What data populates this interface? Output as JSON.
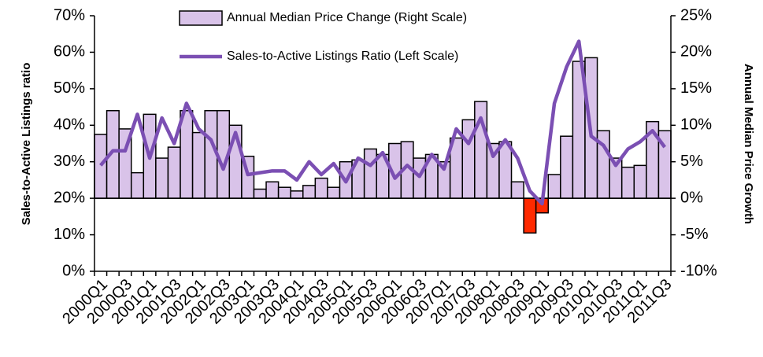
{
  "chart_data": {
    "type": "bar_line",
    "y_label": "Sales-to-Active Listings ratio",
    "y2_label": "Annual Median Price Growth",
    "categories": [
      "2000Q1",
      null,
      "2000Q3",
      null,
      "2001Q1",
      null,
      "2001Q3",
      null,
      "2002Q1",
      null,
      "2002Q3",
      null,
      "2003Q1",
      null,
      "2003Q3",
      null,
      "2004Q1",
      null,
      "2004Q3",
      null,
      "2005Q1",
      null,
      "2005Q3",
      null,
      "2006Q1",
      null,
      "2006Q3",
      null,
      "2007Q1",
      null,
      "2007Q3",
      null,
      "2008Q1",
      null,
      "2008Q3",
      null,
      "2009Q1",
      null,
      "2009Q3",
      null,
      "2010Q1",
      null,
      "2010Q3",
      null,
      "2011Q1",
      null,
      "2011Q3"
    ],
    "series": [
      {
        "name": "Annual Median Price Change (Right Scale)",
        "kind": "bar",
        "axis": "y2",
        "color": "#d9c3e9",
        "negative_color": "#ff2a00",
        "values": [
          8.75,
          12,
          9.5,
          3.5,
          11.5,
          5.5,
          7,
          12,
          9,
          12,
          12,
          10,
          5.75,
          1.25,
          2.25,
          1.5,
          1,
          1.75,
          2.75,
          1.5,
          5,
          5.25,
          6.75,
          6,
          7.5,
          7.75,
          5.5,
          6,
          5,
          8.25,
          10.75,
          13.25,
          7.5,
          7.75,
          2.25,
          -4.75,
          -2,
          3.25,
          8.5,
          18.75,
          19.25,
          9.25,
          5.5,
          4.25,
          4.5,
          10.5,
          9.25
        ]
      },
      {
        "name": "Sales-to-Active Listings Ratio (Left Scale)",
        "kind": "line",
        "axis": "y",
        "color": "#7b4fb3",
        "values": [
          29,
          33,
          33,
          43,
          31,
          42,
          35,
          46,
          39,
          36,
          28,
          38,
          26.5,
          27,
          27.5,
          27.5,
          25,
          30,
          26.5,
          29.5,
          24.5,
          31,
          29,
          32.5,
          25.5,
          29,
          26,
          32,
          28,
          39,
          35,
          42,
          31.5,
          36,
          31,
          22,
          18.5,
          46,
          56,
          63,
          37,
          34.5,
          29,
          33.5,
          35.5,
          38.5,
          34
        ]
      }
    ],
    "ylim": [
      0,
      70
    ],
    "yticks": [
      {
        "value": 0,
        "label": "0%"
      },
      {
        "value": 10,
        "label": "10%"
      },
      {
        "value": 20,
        "label": "20%"
      },
      {
        "value": 30,
        "label": "30%"
      },
      {
        "value": 40,
        "label": "40%"
      },
      {
        "value": 50,
        "label": "50%"
      },
      {
        "value": 60,
        "label": "60%"
      },
      {
        "value": 70,
        "label": "70%"
      }
    ],
    "y2lim": [
      -10,
      25
    ],
    "y2ticks": [
      {
        "value": -10,
        "label": "-10%"
      },
      {
        "value": -5,
        "label": "-5%"
      },
      {
        "value": 0,
        "label": "0%"
      },
      {
        "value": 5,
        "label": "5%"
      },
      {
        "value": 10,
        "label": "10%"
      },
      {
        "value": 15,
        "label": "15%"
      },
      {
        "value": 20,
        "label": "20%"
      },
      {
        "value": 25,
        "label": "25%"
      }
    ]
  }
}
